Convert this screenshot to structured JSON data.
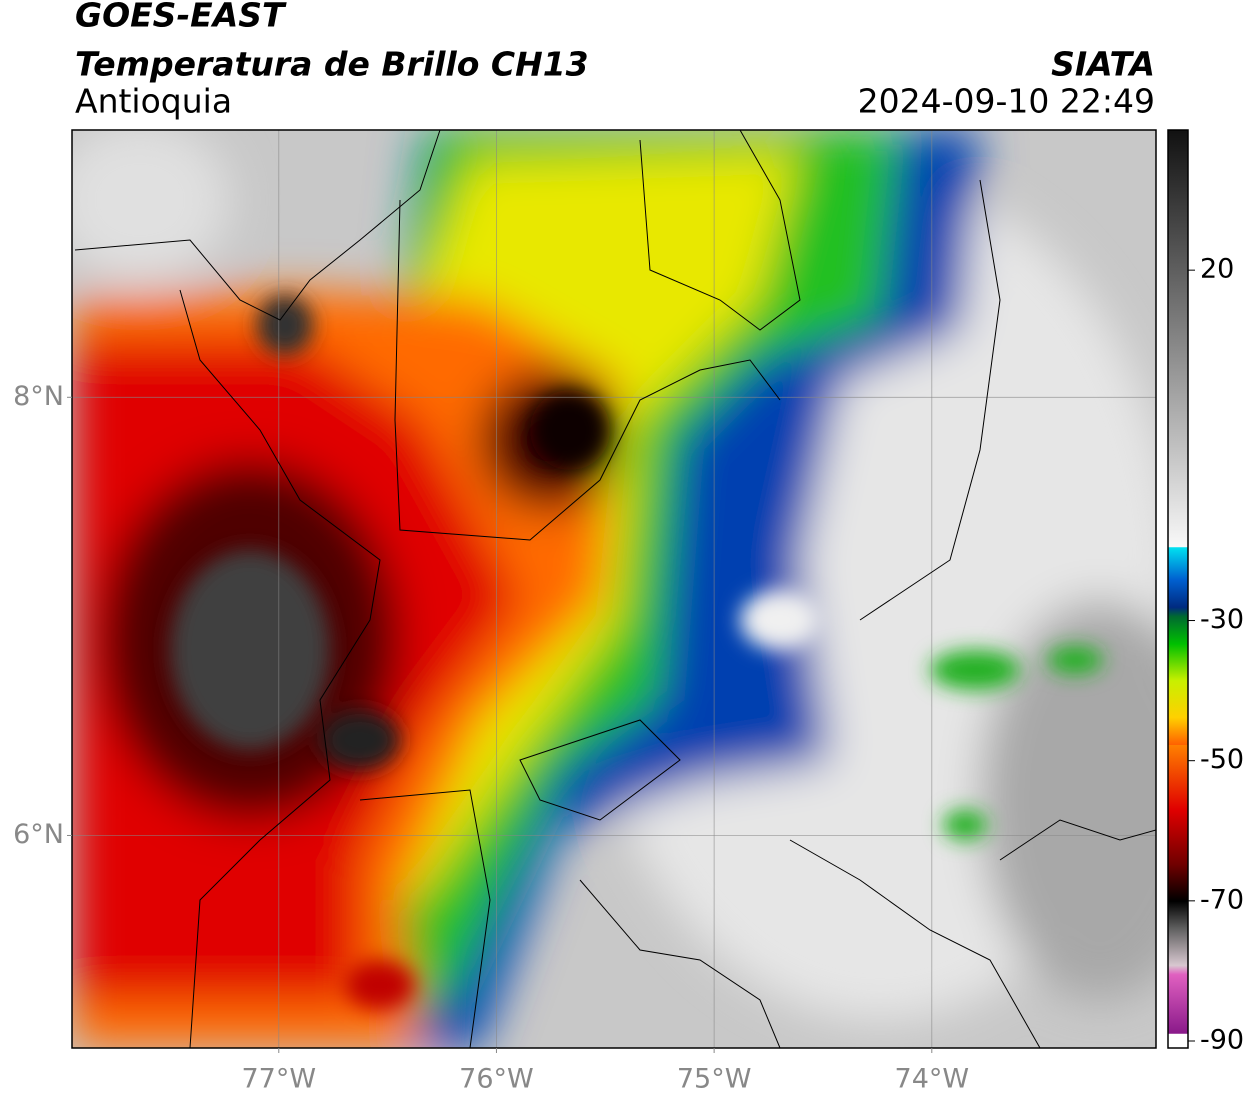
{
  "header": {
    "title": "GOES-EAST",
    "subtitle": "Temperatura de Brillo CH13",
    "region": "Antioquia",
    "source": "SIATA",
    "datetime": "2024-09-10 22:49"
  },
  "map": {
    "lonlim": [
      -77.95,
      -72.97
    ],
    "latlim": [
      5.03,
      9.22
    ],
    "lon_ticks": [
      {
        "value": -77,
        "label": "77°W"
      },
      {
        "value": -76,
        "label": "76°W"
      },
      {
        "value": -75,
        "label": "75°W"
      },
      {
        "value": -74,
        "label": "74°W"
      }
    ],
    "lat_ticks": [
      {
        "value": 8,
        "label": "8°N"
      },
      {
        "value": 6,
        "label": "6°N"
      }
    ]
  },
  "colorbar": {
    "lim": [
      -91,
      40
    ],
    "ticks": [
      20,
      -30,
      -50,
      -70,
      -90
    ]
  }
}
